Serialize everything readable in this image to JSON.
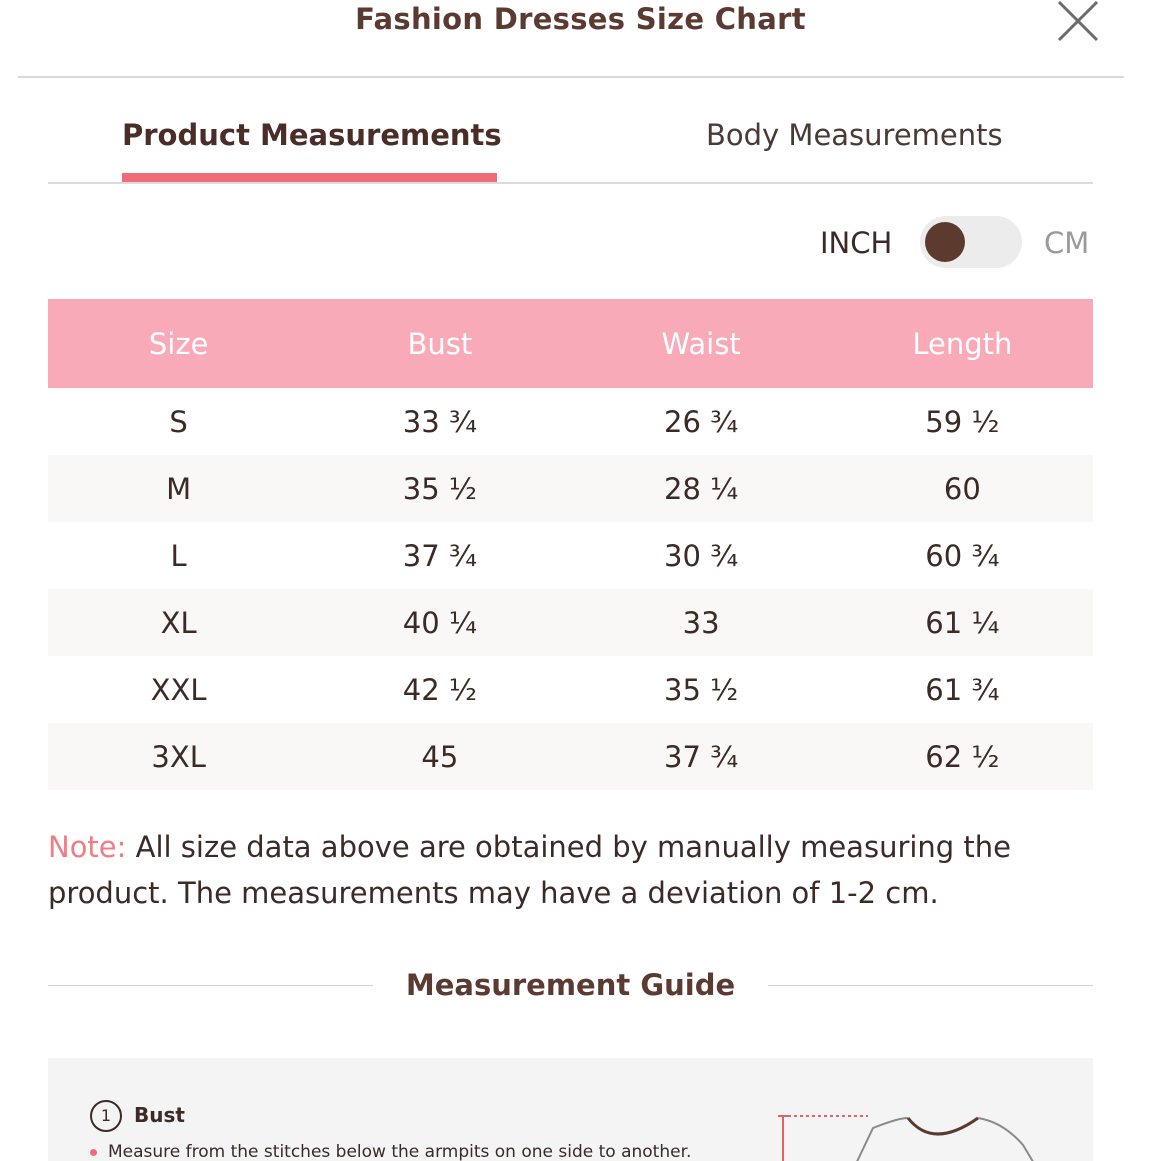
{
  "header": {
    "title": "Fashion Dresses Size Chart",
    "close_icon": "close-icon"
  },
  "tabs": [
    {
      "label": "Product Measurements",
      "active": true
    },
    {
      "label": "Body Measurements",
      "active": false
    }
  ],
  "unit_toggle": {
    "left_label": "INCH",
    "right_label": "CM",
    "selected": "INCH"
  },
  "table": {
    "headers": [
      "Size",
      "Bust",
      "Waist",
      "Length"
    ],
    "rows": [
      [
        "S",
        "33 ¾",
        "26 ¾",
        "59 ½"
      ],
      [
        "M",
        "35 ½",
        "28 ¼",
        "60"
      ],
      [
        "L",
        "37 ¾",
        "30 ¾",
        "60 ¾"
      ],
      [
        "XL",
        "40 ¼",
        "33",
        "61 ¼"
      ],
      [
        "XXL",
        "42 ½",
        "35 ½",
        "61 ¾"
      ],
      [
        "3XL",
        "45",
        "37 ¾",
        "62 ½"
      ]
    ]
  },
  "note": {
    "label": "Note:",
    "text": "All size data above are obtained by manually measuring the product. The measurements may have a deviation of 1-2 cm."
  },
  "guide": {
    "title": "Measurement Guide",
    "step_number": "1",
    "step_title": "Bust",
    "step_desc": "Measure from the stitches below the armpits on one side to another."
  },
  "colors": {
    "accent": "#f06c78",
    "table_header": "#f9aab9",
    "title_brown": "#5b3a31",
    "knob": "#5c3a2e"
  }
}
